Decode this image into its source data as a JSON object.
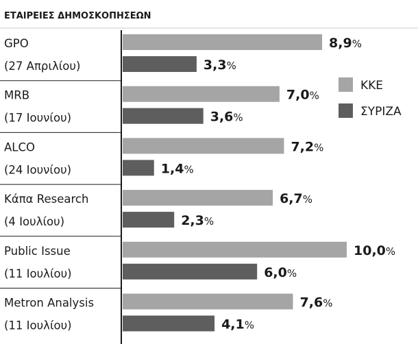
{
  "chart_data": {
    "type": "bar",
    "orientation": "horizontal",
    "title": "ΕΤΑΙΡΕΙΕΣ ΔΗΜΟΣΚΟΠΗΣΕΩΝ",
    "categories": [
      {
        "name": "GPO",
        "date": "(27 Απριλίου)"
      },
      {
        "name": "MRB",
        "date": "(17 Ιουνίου)"
      },
      {
        "name": "ALCO",
        "date": "(24 Ιουνίου)"
      },
      {
        "name": "Κάπα Research",
        "date": "(4 Ιουλίου)"
      },
      {
        "name": "Public Issue",
        "date": "(11 Ιουλίου)"
      },
      {
        "name": "Metron Analysis",
        "date": "(11 Ιουλίου)"
      }
    ],
    "series": [
      {
        "name": "ΚΚΕ",
        "color": "#a5a5a5",
        "values": [
          8.9,
          7.0,
          7.2,
          6.7,
          10.0,
          7.6
        ]
      },
      {
        "name": "ΣΥΡΙΖΑ",
        "color": "#5e5e5e",
        "values": [
          3.3,
          3.6,
          1.4,
          2.3,
          6.0,
          4.1
        ]
      }
    ],
    "value_labels": [
      [
        "8,9",
        "7,0",
        "7,2",
        "6,7",
        "10,0",
        "7,6"
      ],
      [
        "3,3",
        "3,6",
        "1,4",
        "2,3",
        "6,0",
        "4,1"
      ]
    ],
    "value_suffix": "%",
    "xlim": [
      0,
      10
    ],
    "legend_position": "right",
    "grid": false
  }
}
